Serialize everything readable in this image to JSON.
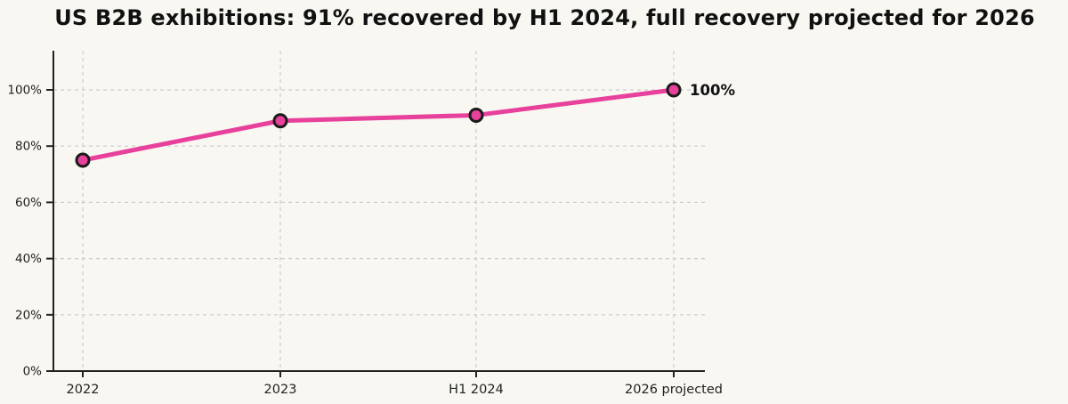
{
  "title": "US B2B exhibitions: 91% recovered by H1 2024, full recovery projected for 2026",
  "chart_data": {
    "type": "line",
    "categories": [
      "2022",
      "2023",
      "H1 2024",
      "2026 projected"
    ],
    "values": [
      75,
      89,
      91,
      100
    ],
    "title": "US B2B exhibitions: 91% recovered by H1 2024, full recovery projected for 2026",
    "xlabel": "",
    "ylabel": "",
    "ylim": [
      0,
      114
    ],
    "ytick_values": [
      0,
      20,
      40,
      60,
      80,
      100
    ],
    "ytick_labels": [
      "0%",
      "20%",
      "40%",
      "60%",
      "80%",
      "100%"
    ],
    "grid": true,
    "grid_style": "dashed",
    "annotation": {
      "text": "100%",
      "category": "2026 projected",
      "value": 100
    },
    "colors": {
      "line": "#e8419c",
      "marker_fill": "#e8419c",
      "marker_edge": "#1a1a1a",
      "grid": "#cccccc",
      "axis": "#222222",
      "tick_text": "#222222",
      "title_text": "#111111",
      "background": "#f8f7f1"
    }
  }
}
